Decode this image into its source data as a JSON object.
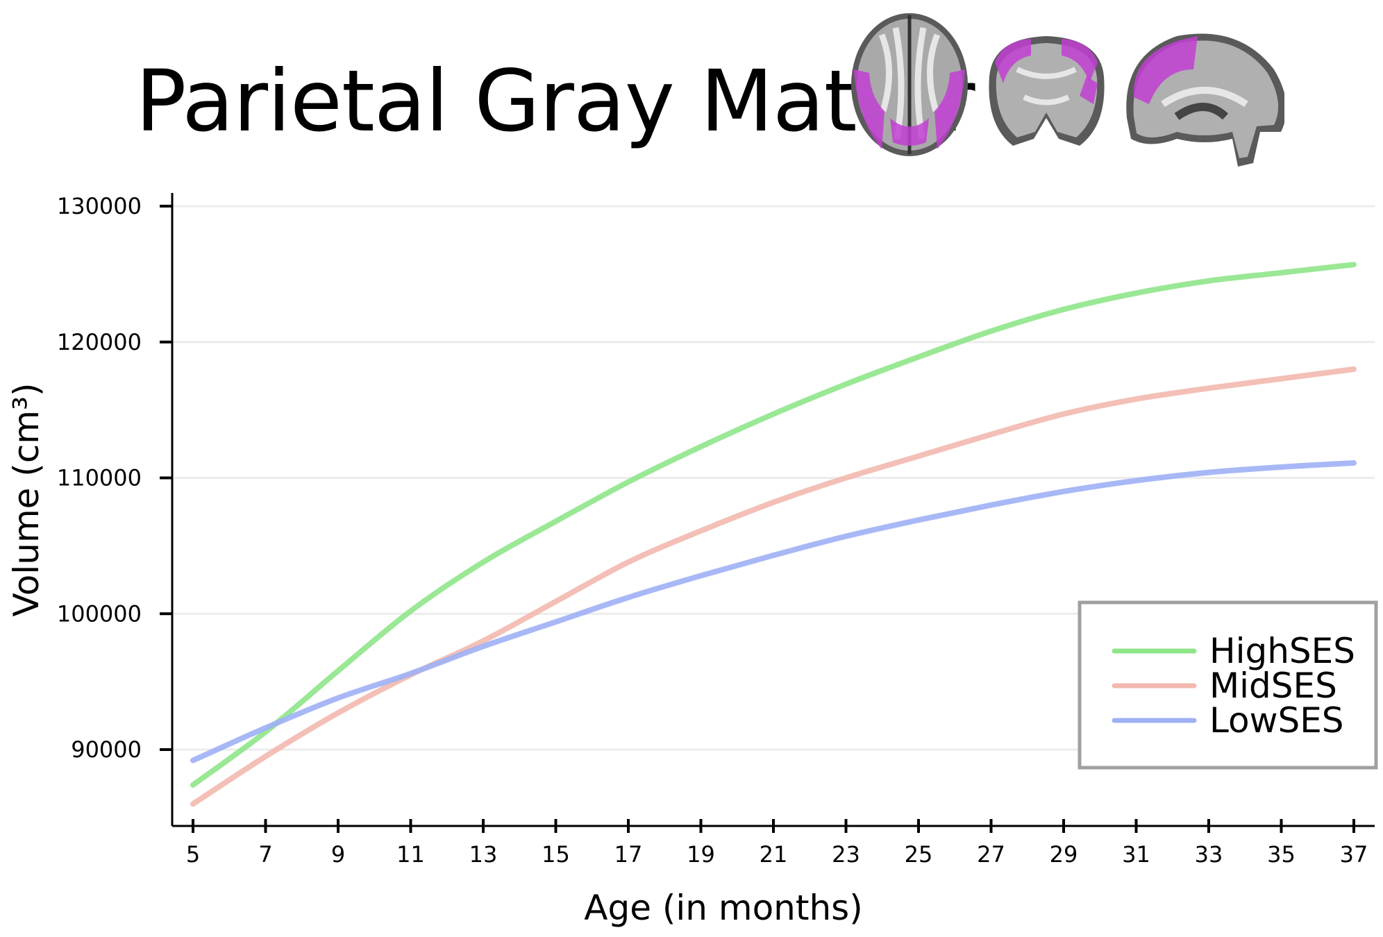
{
  "chart_data": {
    "type": "line",
    "title": "Parietal Gray Matter",
    "xlabel": "Age (in months)",
    "ylabel": "Volume (cm³)",
    "xlim": [
      4.5,
      37.5
    ],
    "ylim": [
      84500,
      131000
    ],
    "xticks": [
      5,
      7,
      9,
      11,
      13,
      15,
      17,
      19,
      21,
      23,
      25,
      27,
      29,
      31,
      33,
      35,
      37
    ],
    "yticks": [
      90000,
      100000,
      110000,
      120000,
      130000
    ],
    "ytick_labels": [
      "90000",
      "100000",
      "110000",
      "120000",
      "130000"
    ],
    "grid": "horizontal",
    "legend": "bottom-right",
    "x": [
      5,
      7,
      9,
      11,
      13,
      15,
      17,
      19,
      21,
      23,
      25,
      27,
      29,
      31,
      33,
      35,
      37
    ],
    "series": [
      {
        "name": "HighSES",
        "color": "#8fe68a",
        "values": [
          87400,
          91300,
          95800,
          100200,
          103800,
          106800,
          109700,
          112300,
          114700,
          116900,
          118900,
          120800,
          122400,
          123600,
          124500,
          125100,
          125700
        ]
      },
      {
        "name": "MidSES",
        "color": "#f2b8ae",
        "values": [
          86000,
          89500,
          92700,
          95500,
          98000,
          100900,
          103800,
          106100,
          108200,
          110000,
          111600,
          113200,
          114700,
          115800,
          116600,
          117300,
          118000
        ]
      },
      {
        "name": "LowSES",
        "color": "#9fb0f5",
        "values": [
          89200,
          91600,
          93800,
          95600,
          97600,
          99400,
          101200,
          102800,
          104300,
          105700,
          106900,
          108000,
          109000,
          109800,
          110400,
          110800,
          111100
        ]
      }
    ]
  },
  "brain_icons": [
    "axial-slice",
    "coronal-slice",
    "sagittal-slice"
  ],
  "highlight_color": "#c23fd2"
}
